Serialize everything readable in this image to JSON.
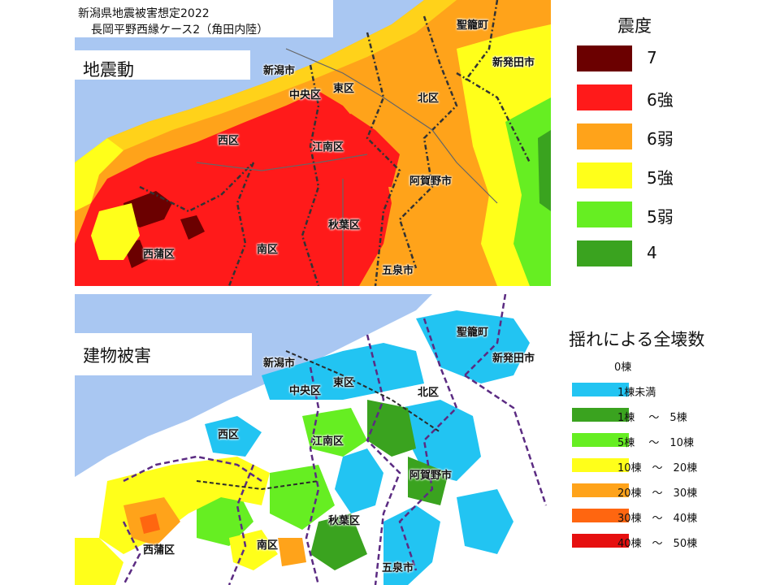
{
  "title": {
    "line1": "新潟県地震被害想定2022",
    "line2": "長岡平野西縁ケース2（角田内陸）"
  },
  "panels": {
    "quake": "地震動",
    "damage": "建物被害"
  },
  "cities": {
    "seiro": "聖籠町",
    "shibata": "新発田市",
    "niigata": "新潟市",
    "chuo": "中央区",
    "higashi": "東区",
    "kita": "北区",
    "nishi": "西区",
    "konan": "江南区",
    "agano": "阿賀野市",
    "akiha": "秋葉区",
    "nishikan": "西蒲区",
    "minami": "南区",
    "gosen": "五泉市"
  },
  "intensity_legend": {
    "title": "震度",
    "items": [
      {
        "label": "7",
        "color": "#6b0000"
      },
      {
        "label": "6強",
        "color": "#ff1a1a"
      },
      {
        "label": "6弱",
        "color": "#ffa31a"
      },
      {
        "label": "5強",
        "color": "#ffff1a"
      },
      {
        "label": "5弱",
        "color": "#66ee22"
      },
      {
        "label": "4",
        "color": "#3aa31f"
      }
    ]
  },
  "damage_legend": {
    "title": "揺れによる全壊数",
    "items": [
      {
        "label": "0棟",
        "color": "#ffffff"
      },
      {
        "label": "1棟未満",
        "color": "#22c4f2"
      },
      {
        "label": "1棟　 ～　5棟",
        "color": "#3aa31f"
      },
      {
        "label": "5棟　 ～　10棟",
        "color": "#66ee22"
      },
      {
        "label": "10棟　～　20棟",
        "color": "#ffff1a"
      },
      {
        "label": "20棟　～　30棟",
        "color": "#ffa31a"
      },
      {
        "label": "30棟　～　40棟",
        "color": "#ff6610"
      },
      {
        "label": "40棟　～　50棟",
        "color": "#e60f0f"
      }
    ]
  }
}
